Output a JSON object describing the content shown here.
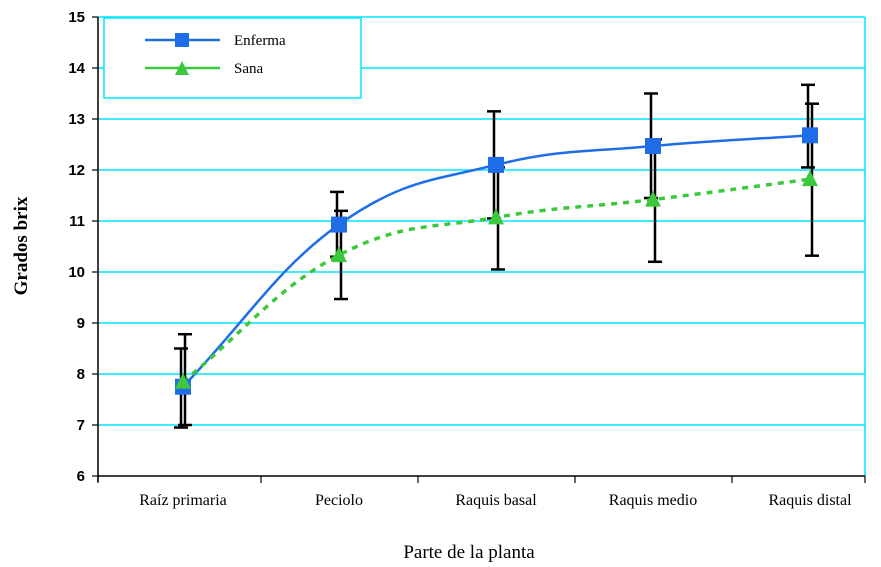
{
  "chart_data": {
    "type": "line",
    "xlabel": "Parte de la planta",
    "ylabel": "Grados brix",
    "ylim": [
      6,
      15
    ],
    "yticks": [
      6,
      7,
      8,
      9,
      10,
      11,
      12,
      13,
      14,
      15
    ],
    "grid": true,
    "legend_position": "top-left",
    "categories": [
      "Raíz primaria",
      "Peciolo",
      "Raquis basal",
      "Raquis medio",
      "Raquis distal"
    ],
    "series": [
      {
        "name": "Enferma",
        "color": "#1f6ee8",
        "marker": "square",
        "line_style": "solid",
        "values": [
          7.75,
          10.93,
          12.1,
          12.47,
          12.68
        ],
        "error_low": [
          6.95,
          10.3,
          11.05,
          11.45,
          12.05
        ],
        "error_high": [
          8.5,
          11.57,
          13.15,
          13.5,
          13.67
        ]
      },
      {
        "name": "Sana",
        "color": "#3cc83c",
        "marker": "triangle",
        "line_style": "dotted",
        "values": [
          7.85,
          10.33,
          11.07,
          11.42,
          11.82
        ],
        "error_low": [
          7.0,
          9.47,
          10.05,
          10.2,
          10.32
        ],
        "error_high": [
          8.78,
          11.2,
          12.05,
          12.6,
          13.3
        ]
      }
    ]
  }
}
